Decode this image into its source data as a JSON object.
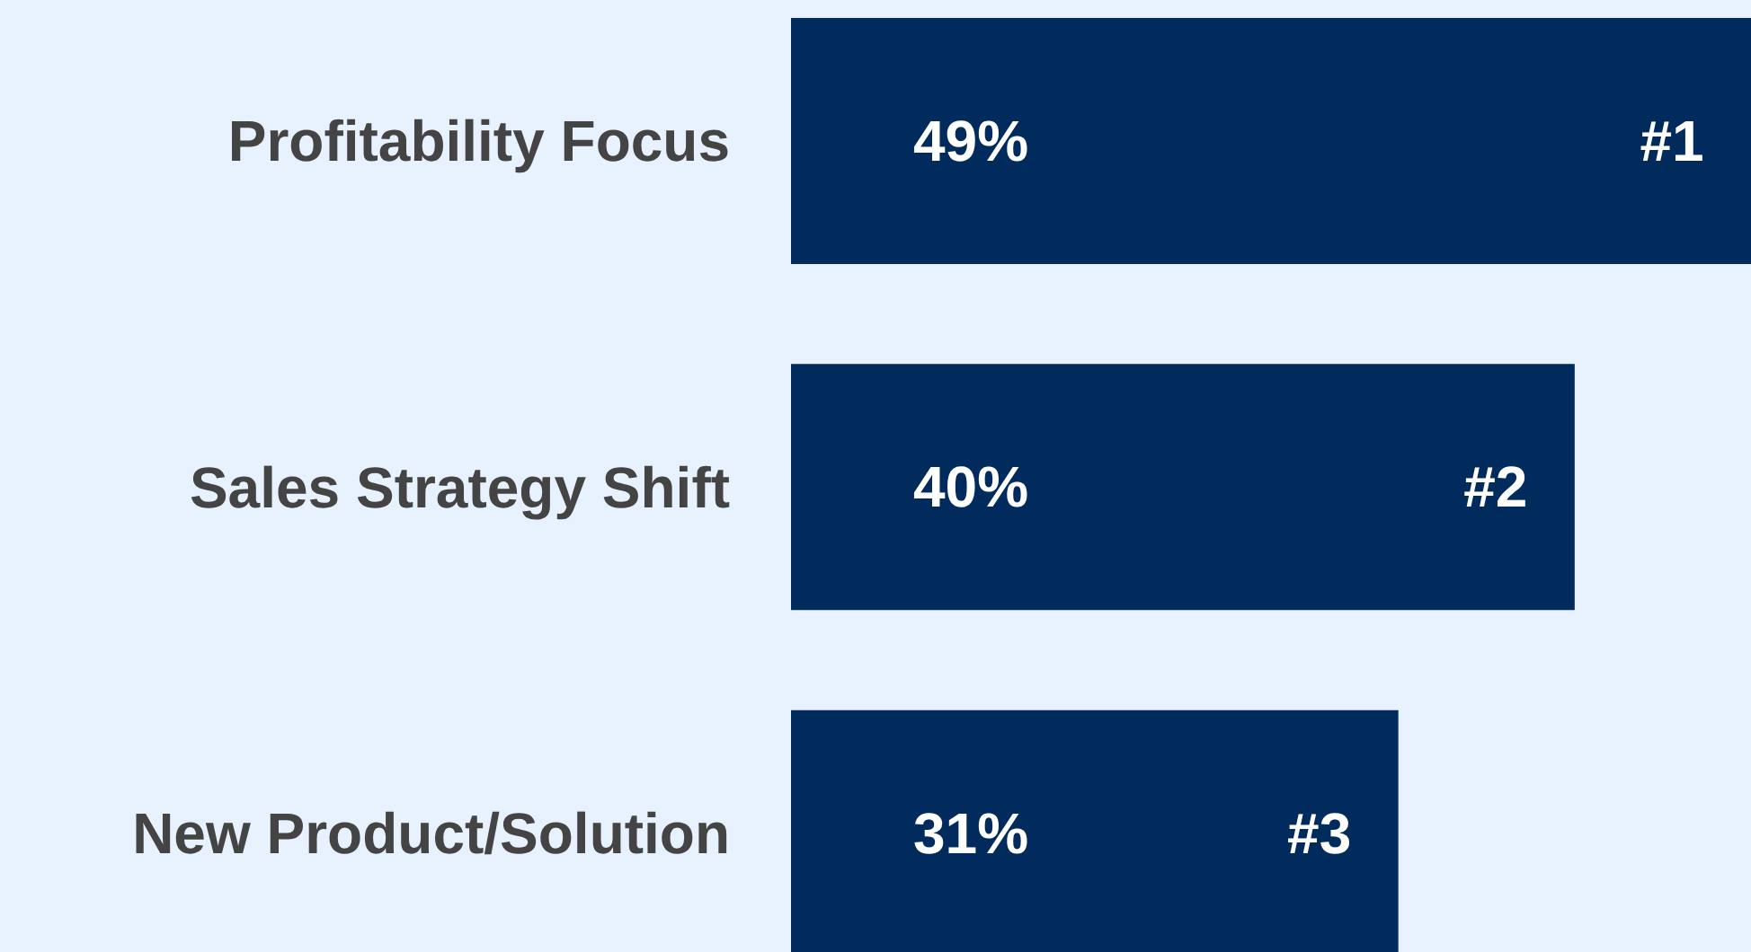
{
  "chart_data": {
    "type": "bar",
    "orientation": "horizontal",
    "categories": [
      "Profitability Focus",
      "Sales Strategy Shift",
      "New Product/Solution"
    ],
    "values": [
      49,
      40,
      31
    ],
    "color": "#002b5c",
    "value_labels": [
      "49%",
      "40%",
      "31%"
    ],
    "xlim": [
      0,
      49
    ],
    "tick_labels": "y",
    "grid": false,
    "annotations": [
      "#1",
      "#2",
      "#3"
    ]
  }
}
